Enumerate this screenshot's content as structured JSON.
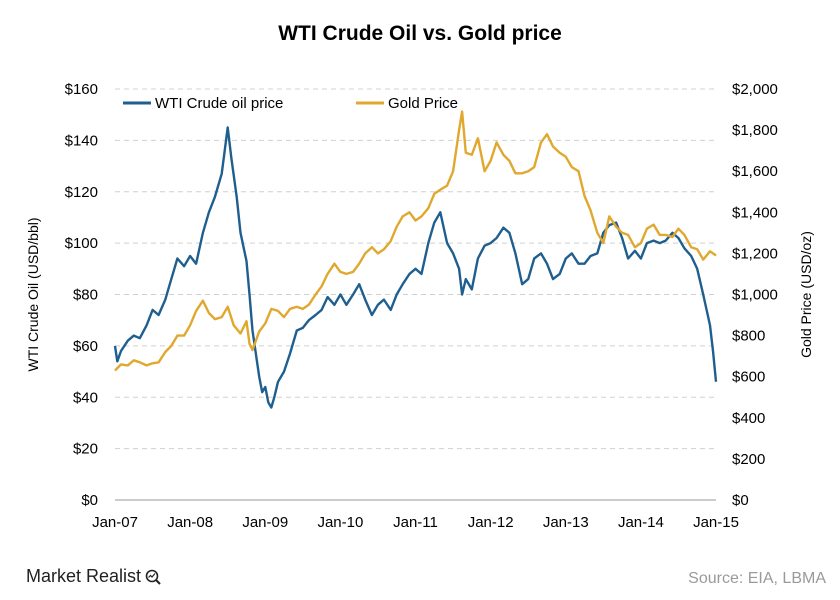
{
  "chart_data": {
    "type": "line",
    "title": "WTI Crude Oil vs. Gold price",
    "x_ticks": [
      "Jan-07",
      "Jan-08",
      "Jan-09",
      "Jan-10",
      "Jan-11",
      "Jan-12",
      "Jan-13",
      "Jan-14",
      "Jan-15"
    ],
    "x_range": [
      2007.0,
      2015.0
    ],
    "y_left": {
      "label": "WTI Crude Oil (USD/bbl)",
      "ticks": [
        "$0",
        "$20",
        "$40",
        "$60",
        "$80",
        "$100",
        "$120",
        "$140",
        "$160"
      ],
      "range": [
        0,
        160
      ]
    },
    "y_right": {
      "label": "Gold Price (USD/oz)",
      "ticks": [
        "$0",
        "$200",
        "$400",
        "$600",
        "$800",
        "$1,000",
        "$1,200",
        "$1,400",
        "$1,600",
        "$1,800",
        "$2,000"
      ],
      "range": [
        0,
        2000
      ]
    },
    "grid": true,
    "legend_position": "top",
    "series": [
      {
        "name": "WTI Crude oil price",
        "axis": "left",
        "color": "#1f5f8f",
        "points": [
          [
            2007.0,
            60
          ],
          [
            2007.03,
            54
          ],
          [
            2007.08,
            58
          ],
          [
            2007.17,
            62
          ],
          [
            2007.25,
            64
          ],
          [
            2007.33,
            63
          ],
          [
            2007.42,
            68
          ],
          [
            2007.5,
            74
          ],
          [
            2007.58,
            72
          ],
          [
            2007.67,
            78
          ],
          [
            2007.75,
            86
          ],
          [
            2007.83,
            94
          ],
          [
            2007.92,
            91
          ],
          [
            2008.0,
            95
          ],
          [
            2008.08,
            92
          ],
          [
            2008.17,
            104
          ],
          [
            2008.25,
            112
          ],
          [
            2008.33,
            118
          ],
          [
            2008.42,
            127
          ],
          [
            2008.46,
            136
          ],
          [
            2008.5,
            145
          ],
          [
            2008.55,
            133
          ],
          [
            2008.62,
            118
          ],
          [
            2008.67,
            104
          ],
          [
            2008.75,
            93
          ],
          [
            2008.79,
            80
          ],
          [
            2008.83,
            66
          ],
          [
            2008.88,
            56
          ],
          [
            2008.92,
            48
          ],
          [
            2008.96,
            42
          ],
          [
            2009.0,
            44
          ],
          [
            2009.04,
            38
          ],
          [
            2009.08,
            36
          ],
          [
            2009.12,
            40
          ],
          [
            2009.17,
            46
          ],
          [
            2009.25,
            50
          ],
          [
            2009.33,
            57
          ],
          [
            2009.42,
            66
          ],
          [
            2009.5,
            67
          ],
          [
            2009.58,
            70
          ],
          [
            2009.67,
            72
          ],
          [
            2009.75,
            74
          ],
          [
            2009.83,
            79
          ],
          [
            2009.92,
            76
          ],
          [
            2010.0,
            80
          ],
          [
            2010.08,
            76
          ],
          [
            2010.17,
            80
          ],
          [
            2010.25,
            84
          ],
          [
            2010.33,
            78
          ],
          [
            2010.42,
            72
          ],
          [
            2010.5,
            76
          ],
          [
            2010.58,
            78
          ],
          [
            2010.67,
            74
          ],
          [
            2010.75,
            80
          ],
          [
            2010.83,
            84
          ],
          [
            2010.92,
            88
          ],
          [
            2011.0,
            90
          ],
          [
            2011.08,
            88
          ],
          [
            2011.17,
            100
          ],
          [
            2011.25,
            108
          ],
          [
            2011.33,
            112
          ],
          [
            2011.42,
            100
          ],
          [
            2011.5,
            96
          ],
          [
            2011.58,
            90
          ],
          [
            2011.62,
            80
          ],
          [
            2011.67,
            86
          ],
          [
            2011.75,
            82
          ],
          [
            2011.83,
            94
          ],
          [
            2011.92,
            99
          ],
          [
            2012.0,
            100
          ],
          [
            2012.08,
            102
          ],
          [
            2012.17,
            106
          ],
          [
            2012.25,
            104
          ],
          [
            2012.33,
            96
          ],
          [
            2012.42,
            84
          ],
          [
            2012.5,
            86
          ],
          [
            2012.58,
            94
          ],
          [
            2012.67,
            96
          ],
          [
            2012.75,
            92
          ],
          [
            2012.83,
            86
          ],
          [
            2012.92,
            88
          ],
          [
            2013.0,
            94
          ],
          [
            2013.08,
            96
          ],
          [
            2013.17,
            92
          ],
          [
            2013.25,
            92
          ],
          [
            2013.33,
            95
          ],
          [
            2013.42,
            96
          ],
          [
            2013.5,
            104
          ],
          [
            2013.58,
            107
          ],
          [
            2013.67,
            108
          ],
          [
            2013.75,
            102
          ],
          [
            2013.83,
            94
          ],
          [
            2013.92,
            97
          ],
          [
            2014.0,
            94
          ],
          [
            2014.08,
            100
          ],
          [
            2014.17,
            101
          ],
          [
            2014.25,
            100
          ],
          [
            2014.33,
            101
          ],
          [
            2014.42,
            104
          ],
          [
            2014.5,
            102
          ],
          [
            2014.58,
            98
          ],
          [
            2014.67,
            95
          ],
          [
            2014.75,
            90
          ],
          [
            2014.83,
            80
          ],
          [
            2014.92,
            68
          ],
          [
            2014.96,
            58
          ],
          [
            2015.0,
            46
          ]
        ]
      },
      {
        "name": "Gold Price",
        "axis": "right",
        "color": "#e0a82e",
        "points": [
          [
            2007.0,
            630
          ],
          [
            2007.08,
            660
          ],
          [
            2007.17,
            655
          ],
          [
            2007.25,
            680
          ],
          [
            2007.33,
            670
          ],
          [
            2007.42,
            655
          ],
          [
            2007.5,
            665
          ],
          [
            2007.58,
            670
          ],
          [
            2007.67,
            720
          ],
          [
            2007.75,
            750
          ],
          [
            2007.83,
            800
          ],
          [
            2007.92,
            800
          ],
          [
            2008.0,
            850
          ],
          [
            2008.08,
            920
          ],
          [
            2008.17,
            970
          ],
          [
            2008.25,
            910
          ],
          [
            2008.33,
            880
          ],
          [
            2008.42,
            890
          ],
          [
            2008.5,
            940
          ],
          [
            2008.58,
            850
          ],
          [
            2008.67,
            810
          ],
          [
            2008.75,
            870
          ],
          [
            2008.79,
            760
          ],
          [
            2008.83,
            730
          ],
          [
            2008.92,
            820
          ],
          [
            2009.0,
            860
          ],
          [
            2009.08,
            930
          ],
          [
            2009.17,
            920
          ],
          [
            2009.25,
            890
          ],
          [
            2009.33,
            930
          ],
          [
            2009.42,
            940
          ],
          [
            2009.5,
            930
          ],
          [
            2009.58,
            950
          ],
          [
            2009.67,
            1000
          ],
          [
            2009.75,
            1040
          ],
          [
            2009.83,
            1100
          ],
          [
            2009.92,
            1150
          ],
          [
            2010.0,
            1110
          ],
          [
            2010.08,
            1100
          ],
          [
            2010.17,
            1110
          ],
          [
            2010.25,
            1150
          ],
          [
            2010.33,
            1200
          ],
          [
            2010.42,
            1230
          ],
          [
            2010.5,
            1200
          ],
          [
            2010.58,
            1220
          ],
          [
            2010.67,
            1260
          ],
          [
            2010.75,
            1330
          ],
          [
            2010.83,
            1380
          ],
          [
            2010.92,
            1400
          ],
          [
            2011.0,
            1360
          ],
          [
            2011.08,
            1380
          ],
          [
            2011.17,
            1420
          ],
          [
            2011.25,
            1490
          ],
          [
            2011.33,
            1510
          ],
          [
            2011.42,
            1530
          ],
          [
            2011.5,
            1600
          ],
          [
            2011.58,
            1800
          ],
          [
            2011.62,
            1890
          ],
          [
            2011.67,
            1690
          ],
          [
            2011.75,
            1680
          ],
          [
            2011.83,
            1760
          ],
          [
            2011.92,
            1600
          ],
          [
            2012.0,
            1650
          ],
          [
            2012.08,
            1740
          ],
          [
            2012.17,
            1680
          ],
          [
            2012.25,
            1650
          ],
          [
            2012.33,
            1590
          ],
          [
            2012.42,
            1590
          ],
          [
            2012.5,
            1600
          ],
          [
            2012.58,
            1620
          ],
          [
            2012.67,
            1740
          ],
          [
            2012.75,
            1780
          ],
          [
            2012.83,
            1720
          ],
          [
            2012.92,
            1690
          ],
          [
            2013.0,
            1670
          ],
          [
            2013.08,
            1620
          ],
          [
            2013.17,
            1600
          ],
          [
            2013.25,
            1480
          ],
          [
            2013.33,
            1410
          ],
          [
            2013.42,
            1300
          ],
          [
            2013.5,
            1250
          ],
          [
            2013.58,
            1380
          ],
          [
            2013.67,
            1330
          ],
          [
            2013.75,
            1300
          ],
          [
            2013.83,
            1290
          ],
          [
            2013.92,
            1230
          ],
          [
            2014.0,
            1250
          ],
          [
            2014.08,
            1320
          ],
          [
            2014.17,
            1340
          ],
          [
            2014.25,
            1290
          ],
          [
            2014.33,
            1290
          ],
          [
            2014.42,
            1280
          ],
          [
            2014.5,
            1320
          ],
          [
            2014.58,
            1290
          ],
          [
            2014.67,
            1230
          ],
          [
            2014.75,
            1220
          ],
          [
            2014.83,
            1170
          ],
          [
            2014.92,
            1210
          ],
          [
            2015.0,
            1190
          ]
        ]
      }
    ]
  },
  "footer": {
    "brand": "Market Realist",
    "source": "Source: EIA, LBMA"
  }
}
